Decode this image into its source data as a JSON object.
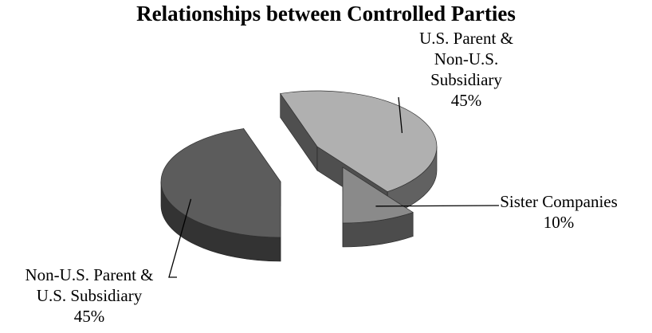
{
  "chart_data": {
    "type": "pie",
    "title": "Relationships between Controlled Parties",
    "exploded": true,
    "three_d": true,
    "slices": [
      {
        "label_lines": [
          "U.S. Parent &",
          "Non-U.S.",
          "Subsidiary"
        ],
        "pct_label": "45%",
        "value": 45,
        "color": "#b0b0b0"
      },
      {
        "label_lines": [
          "Sister Companies"
        ],
        "pct_label": "10%",
        "value": 10,
        "color": "#8a8a8a"
      },
      {
        "label_lines": [
          "Non-U.S. Parent &",
          "U.S. Subsidiary"
        ],
        "pct_label": "45%",
        "value": 45,
        "color": "#5c5c5c"
      }
    ]
  }
}
